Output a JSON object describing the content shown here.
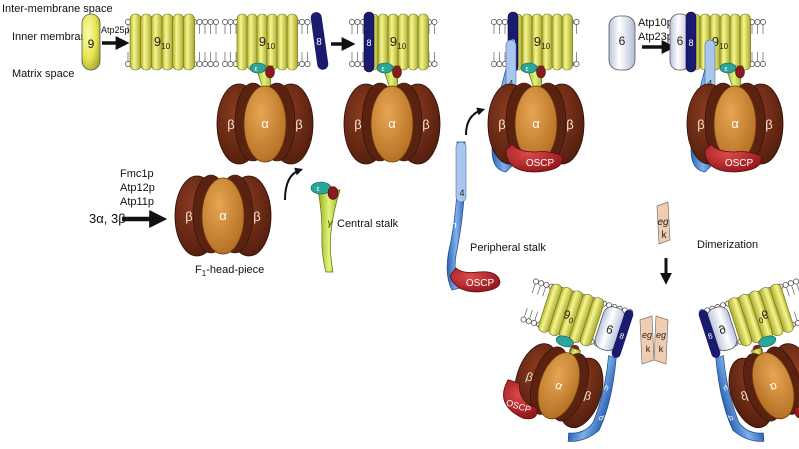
{
  "labels": {
    "inter_membrane_space": "Inter-membrane space",
    "inner_membrane": "Inner membrane",
    "matrix_space": "Matrix space",
    "atp25p": "Atp25p",
    "fmc1p": "Fmc1p",
    "atp12p": "Atp12p",
    "atp11p": "Atp11p",
    "alpha_beta": "3α, 3β",
    "f1_head_piece": "F",
    "f1_head_piece_sub": "1",
    "f1_head_piece_suffix": "-head-piece",
    "central_stalk": "Central stalk",
    "peripheral_stalk": "Peripheral stalk",
    "atp10p": "Atp10p",
    "atp23p": "Atp23p",
    "dimerization": "Dimerization"
  },
  "subunits": {
    "nine": "9",
    "ring": "9",
    "ring_sub": "10",
    "ring_dimer_sub": "0",
    "eight": "8",
    "six": "6",
    "four": "4",
    "alpha": "α",
    "beta": "β",
    "gamma": "γ",
    "delta": "δ",
    "epsilon": "ε",
    "b": "b",
    "d": "d",
    "h": "h",
    "oscp": "OSCP",
    "e": "e",
    "g": "g",
    "k": "k"
  },
  "colors": {
    "membrane_line": "#444444",
    "yellow": "#e6e650",
    "yellow_dark": "#9a9a20",
    "dark_blue": "#1a1a6e",
    "pale_blue": "#dfe6f5",
    "brown": "#6b2b16",
    "orange": "#d38a35",
    "green": "#b8d23a",
    "light_blue": "#3d7fd0",
    "red": "#c0282e",
    "tan": "#f0ccb0"
  }
}
